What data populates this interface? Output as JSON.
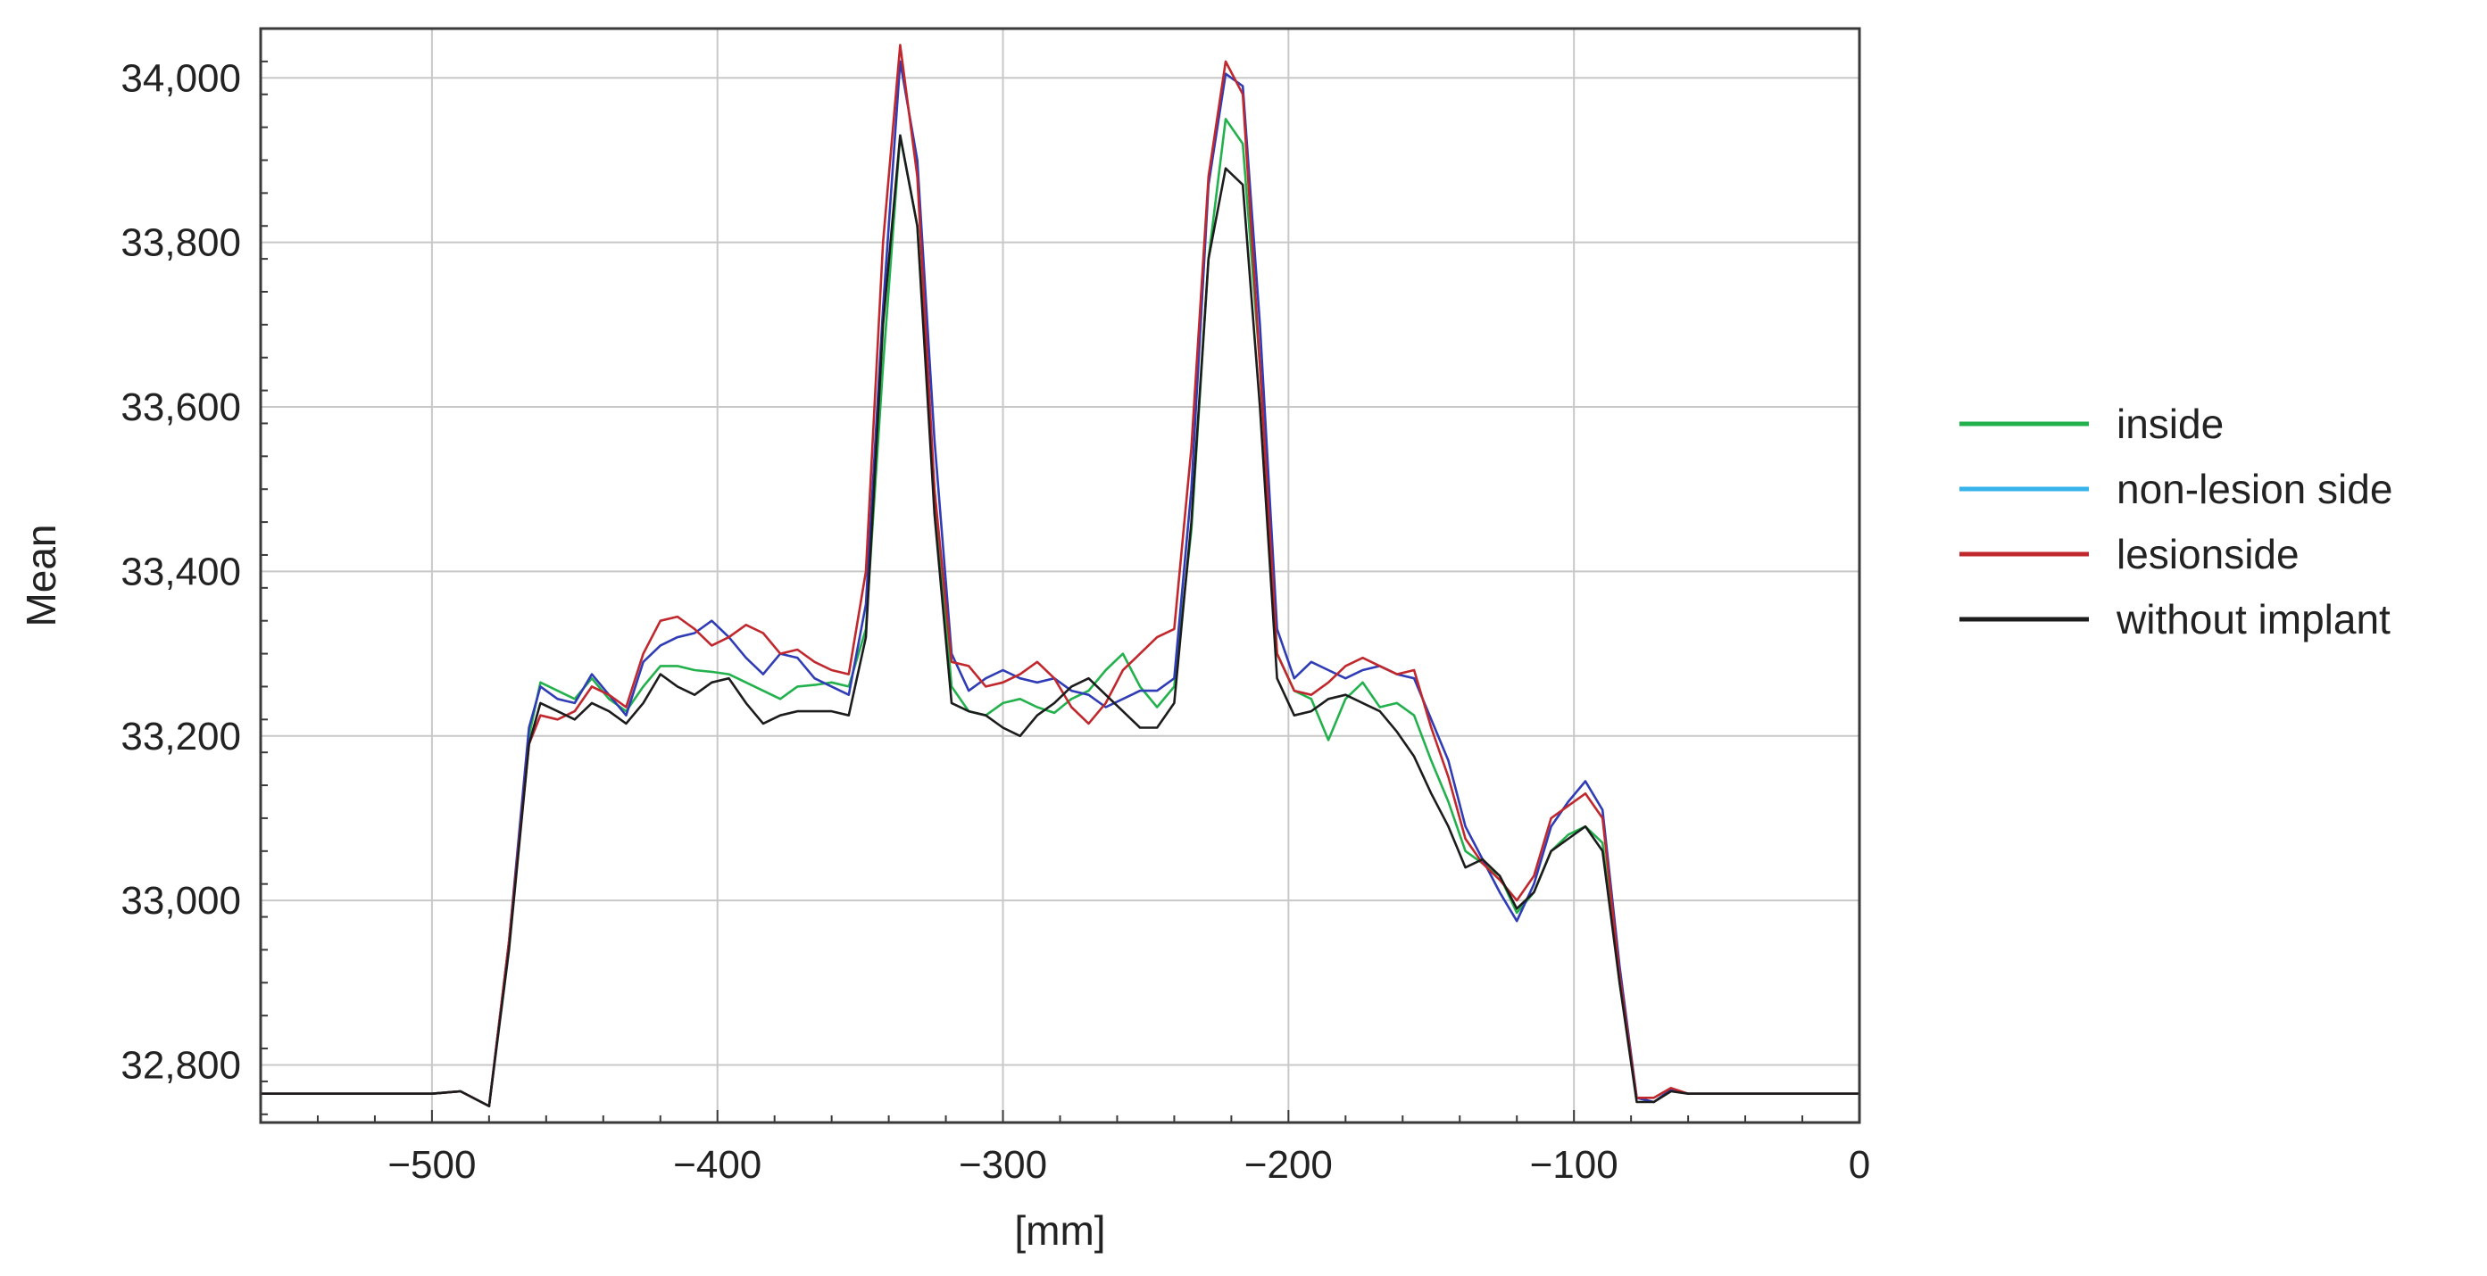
{
  "chart_data": {
    "type": "line",
    "title": "",
    "xlabel": "[mm]",
    "ylabel": "Mean",
    "xlim": [
      -560,
      0
    ],
    "ylim": [
      32730,
      34060
    ],
    "x_ticks": [
      -500,
      -400,
      -300,
      -200,
      -100,
      0
    ],
    "x_tick_labels": [
      "−500",
      "−400",
      "−300",
      "−200",
      "−100",
      "0"
    ],
    "y_ticks": [
      32800,
      33000,
      33200,
      33400,
      33600,
      33800,
      34000
    ],
    "y_tick_labels": [
      "32,800",
      "33,000",
      "33,200",
      "33,400",
      "33,600",
      "33,800",
      "34,000"
    ],
    "grid": true,
    "legend_position": "right",
    "series": [
      {
        "name": "inside",
        "color": "#22b14c",
        "points": [
          [
            -560,
            32765
          ],
          [
            -500,
            32765
          ],
          [
            -490,
            32768
          ],
          [
            -480,
            32750
          ],
          [
            -473,
            32950
          ],
          [
            -466,
            33200
          ],
          [
            -462,
            33265
          ],
          [
            -456,
            33255
          ],
          [
            -450,
            33245
          ],
          [
            -444,
            33270
          ],
          [
            -438,
            33245
          ],
          [
            -432,
            33230
          ],
          [
            -426,
            33260
          ],
          [
            -420,
            33285
          ],
          [
            -414,
            33285
          ],
          [
            -408,
            33280
          ],
          [
            -402,
            33278
          ],
          [
            -396,
            33275
          ],
          [
            -390,
            33265
          ],
          [
            -384,
            33255
          ],
          [
            -378,
            33245
          ],
          [
            -372,
            33260
          ],
          [
            -366,
            33262
          ],
          [
            -360,
            33265
          ],
          [
            -354,
            33260
          ],
          [
            -348,
            33330
          ],
          [
            -342,
            33650
          ],
          [
            -336,
            33930
          ],
          [
            -330,
            33820
          ],
          [
            -324,
            33500
          ],
          [
            -318,
            33260
          ],
          [
            -312,
            33230
          ],
          [
            -306,
            33225
          ],
          [
            -300,
            33240
          ],
          [
            -294,
            33245
          ],
          [
            -288,
            33235
          ],
          [
            -282,
            33228
          ],
          [
            -276,
            33245
          ],
          [
            -270,
            33255
          ],
          [
            -264,
            33280
          ],
          [
            -258,
            33300
          ],
          [
            -252,
            33260
          ],
          [
            -246,
            33235
          ],
          [
            -240,
            33260
          ],
          [
            -234,
            33450
          ],
          [
            -228,
            33780
          ],
          [
            -222,
            33950
          ],
          [
            -216,
            33920
          ],
          [
            -210,
            33650
          ],
          [
            -204,
            33300
          ],
          [
            -198,
            33255
          ],
          [
            -192,
            33245
          ],
          [
            -186,
            33195
          ],
          [
            -180,
            33245
          ],
          [
            -174,
            33265
          ],
          [
            -168,
            33235
          ],
          [
            -162,
            33240
          ],
          [
            -156,
            33225
          ],
          [
            -150,
            33170
          ],
          [
            -144,
            33120
          ],
          [
            -138,
            33060
          ],
          [
            -132,
            33045
          ],
          [
            -126,
            33030
          ],
          [
            -120,
            32985
          ],
          [
            -114,
            33010
          ],
          [
            -108,
            33060
          ],
          [
            -102,
            33080
          ],
          [
            -96,
            33090
          ],
          [
            -90,
            33070
          ],
          [
            -84,
            32900
          ],
          [
            -78,
            32760
          ],
          [
            -72,
            32755
          ],
          [
            -66,
            32770
          ],
          [
            -60,
            32765
          ],
          [
            0,
            32765
          ]
        ]
      },
      {
        "name": "non-lesion side",
        "color": "#2f3cb5",
        "points": [
          [
            -560,
            32765
          ],
          [
            -500,
            32765
          ],
          [
            -490,
            32768
          ],
          [
            -480,
            32750
          ],
          [
            -473,
            32950
          ],
          [
            -466,
            33210
          ],
          [
            -462,
            33260
          ],
          [
            -456,
            33245
          ],
          [
            -450,
            33240
          ],
          [
            -444,
            33275
          ],
          [
            -438,
            33250
          ],
          [
            -432,
            33225
          ],
          [
            -426,
            33290
          ],
          [
            -420,
            33310
          ],
          [
            -414,
            33320
          ],
          [
            -408,
            33325
          ],
          [
            -402,
            33340
          ],
          [
            -396,
            33320
          ],
          [
            -390,
            33295
          ],
          [
            -384,
            33275
          ],
          [
            -378,
            33300
          ],
          [
            -372,
            33295
          ],
          [
            -366,
            33270
          ],
          [
            -360,
            33260
          ],
          [
            -354,
            33250
          ],
          [
            -348,
            33360
          ],
          [
            -342,
            33720
          ],
          [
            -336,
            34020
          ],
          [
            -330,
            33900
          ],
          [
            -324,
            33560
          ],
          [
            -318,
            33300
          ],
          [
            -312,
            33255
          ],
          [
            -306,
            33270
          ],
          [
            -300,
            33280
          ],
          [
            -294,
            33270
          ],
          [
            -288,
            33265
          ],
          [
            -282,
            33270
          ],
          [
            -276,
            33255
          ],
          [
            -270,
            33250
          ],
          [
            -264,
            33235
          ],
          [
            -258,
            33245
          ],
          [
            -252,
            33255
          ],
          [
            -246,
            33255
          ],
          [
            -240,
            33270
          ],
          [
            -234,
            33500
          ],
          [
            -228,
            33870
          ],
          [
            -222,
            34005
          ],
          [
            -216,
            33990
          ],
          [
            -210,
            33700
          ],
          [
            -204,
            33330
          ],
          [
            -198,
            33270
          ],
          [
            -192,
            33290
          ],
          [
            -186,
            33280
          ],
          [
            -180,
            33270
          ],
          [
            -174,
            33280
          ],
          [
            -168,
            33285
          ],
          [
            -162,
            33275
          ],
          [
            -156,
            33270
          ],
          [
            -150,
            33220
          ],
          [
            -144,
            33170
          ],
          [
            -138,
            33090
          ],
          [
            -132,
            33050
          ],
          [
            -126,
            33010
          ],
          [
            -120,
            32975
          ],
          [
            -114,
            33020
          ],
          [
            -108,
            33090
          ],
          [
            -102,
            33120
          ],
          [
            -96,
            33145
          ],
          [
            -90,
            33110
          ],
          [
            -84,
            32920
          ],
          [
            -78,
            32760
          ],
          [
            -72,
            32755
          ],
          [
            -66,
            32770
          ],
          [
            -60,
            32765
          ],
          [
            0,
            32765
          ]
        ]
      },
      {
        "name": "lesionside",
        "color": "#c0282d",
        "points": [
          [
            -560,
            32765
          ],
          [
            -500,
            32765
          ],
          [
            -490,
            32768
          ],
          [
            -480,
            32750
          ],
          [
            -473,
            32950
          ],
          [
            -466,
            33190
          ],
          [
            -462,
            33225
          ],
          [
            -456,
            33220
          ],
          [
            -450,
            33230
          ],
          [
            -444,
            33260
          ],
          [
            -438,
            33250
          ],
          [
            -432,
            33235
          ],
          [
            -426,
            33300
          ],
          [
            -420,
            33340
          ],
          [
            -414,
            33345
          ],
          [
            -408,
            33330
          ],
          [
            -402,
            33310
          ],
          [
            -396,
            33320
          ],
          [
            -390,
            33335
          ],
          [
            -384,
            33325
          ],
          [
            -378,
            33300
          ],
          [
            -372,
            33305
          ],
          [
            -366,
            33290
          ],
          [
            -360,
            33280
          ],
          [
            -354,
            33275
          ],
          [
            -348,
            33400
          ],
          [
            -342,
            33800
          ],
          [
            -336,
            34040
          ],
          [
            -330,
            33880
          ],
          [
            -324,
            33500
          ],
          [
            -318,
            33290
          ],
          [
            -312,
            33285
          ],
          [
            -306,
            33260
          ],
          [
            -300,
            33265
          ],
          [
            -294,
            33275
          ],
          [
            -288,
            33290
          ],
          [
            -282,
            33270
          ],
          [
            -276,
            33235
          ],
          [
            -270,
            33215
          ],
          [
            -264,
            33240
          ],
          [
            -258,
            33280
          ],
          [
            -252,
            33300
          ],
          [
            -246,
            33320
          ],
          [
            -240,
            33330
          ],
          [
            -234,
            33550
          ],
          [
            -228,
            33880
          ],
          [
            -222,
            34020
          ],
          [
            -216,
            33980
          ],
          [
            -210,
            33650
          ],
          [
            -204,
            33300
          ],
          [
            -198,
            33255
          ],
          [
            -192,
            33250
          ],
          [
            -186,
            33265
          ],
          [
            -180,
            33285
          ],
          [
            -174,
            33295
          ],
          [
            -168,
            33285
          ],
          [
            -162,
            33275
          ],
          [
            -156,
            33280
          ],
          [
            -150,
            33210
          ],
          [
            -144,
            33150
          ],
          [
            -138,
            33075
          ],
          [
            -132,
            33045
          ],
          [
            -126,
            33025
          ],
          [
            -120,
            33000
          ],
          [
            -114,
            33030
          ],
          [
            -108,
            33100
          ],
          [
            -102,
            33115
          ],
          [
            -96,
            33130
          ],
          [
            -90,
            33100
          ],
          [
            -84,
            32910
          ],
          [
            -78,
            32760
          ],
          [
            -72,
            32760
          ],
          [
            -66,
            32772
          ],
          [
            -60,
            32765
          ],
          [
            0,
            32765
          ]
        ]
      },
      {
        "name": "without implant",
        "color": "#1c1c1c",
        "points": [
          [
            -560,
            32765
          ],
          [
            -500,
            32765
          ],
          [
            -490,
            32768
          ],
          [
            -480,
            32750
          ],
          [
            -473,
            32940
          ],
          [
            -466,
            33190
          ],
          [
            -462,
            33240
          ],
          [
            -456,
            33230
          ],
          [
            -450,
            33220
          ],
          [
            -444,
            33240
          ],
          [
            -438,
            33230
          ],
          [
            -432,
            33215
          ],
          [
            -426,
            33240
          ],
          [
            -420,
            33275
          ],
          [
            -414,
            33260
          ],
          [
            -408,
            33250
          ],
          [
            -402,
            33265
          ],
          [
            -396,
            33270
          ],
          [
            -390,
            33240
          ],
          [
            -384,
            33215
          ],
          [
            -378,
            33225
          ],
          [
            -372,
            33230
          ],
          [
            -366,
            33230
          ],
          [
            -360,
            33230
          ],
          [
            -354,
            33225
          ],
          [
            -348,
            33320
          ],
          [
            -342,
            33700
          ],
          [
            -336,
            33930
          ],
          [
            -330,
            33820
          ],
          [
            -324,
            33470
          ],
          [
            -318,
            33240
          ],
          [
            -312,
            33230
          ],
          [
            -306,
            33225
          ],
          [
            -300,
            33210
          ],
          [
            -294,
            33200
          ],
          [
            -288,
            33225
          ],
          [
            -282,
            33240
          ],
          [
            -276,
            33260
          ],
          [
            -270,
            33270
          ],
          [
            -264,
            33250
          ],
          [
            -258,
            33230
          ],
          [
            -252,
            33210
          ],
          [
            -246,
            33210
          ],
          [
            -240,
            33240
          ],
          [
            -234,
            33460
          ],
          [
            -228,
            33780
          ],
          [
            -222,
            33890
          ],
          [
            -216,
            33870
          ],
          [
            -210,
            33600
          ],
          [
            -204,
            33270
          ],
          [
            -198,
            33225
          ],
          [
            -192,
            33230
          ],
          [
            -186,
            33245
          ],
          [
            -180,
            33250
          ],
          [
            -174,
            33240
          ],
          [
            -168,
            33230
          ],
          [
            -162,
            33205
          ],
          [
            -156,
            33175
          ],
          [
            -150,
            33130
          ],
          [
            -144,
            33090
          ],
          [
            -138,
            33040
          ],
          [
            -132,
            33050
          ],
          [
            -126,
            33030
          ],
          [
            -120,
            32990
          ],
          [
            -114,
            33010
          ],
          [
            -108,
            33060
          ],
          [
            -102,
            33075
          ],
          [
            -96,
            33090
          ],
          [
            -90,
            33060
          ],
          [
            -84,
            32900
          ],
          [
            -78,
            32755
          ],
          [
            -72,
            32755
          ],
          [
            -66,
            32768
          ],
          [
            -60,
            32765
          ],
          [
            0,
            32765
          ]
        ]
      }
    ]
  }
}
